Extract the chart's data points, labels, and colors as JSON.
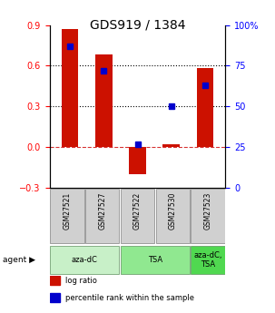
{
  "title": "GDS919 / 1384",
  "samples": [
    "GSM27521",
    "GSM27527",
    "GSM27522",
    "GSM27530",
    "GSM27523"
  ],
  "log_ratios": [
    0.87,
    0.68,
    -0.2,
    0.02,
    0.58
  ],
  "percentile_ranks": [
    87,
    72,
    27,
    50,
    63
  ],
  "left_ylim": [
    -0.3,
    0.9
  ],
  "right_ylim": [
    0,
    100
  ],
  "left_yticks": [
    -0.3,
    0.0,
    0.3,
    0.6,
    0.9
  ],
  "right_yticks": [
    0,
    25,
    50,
    75,
    100
  ],
  "right_yticklabels": [
    "0",
    "25",
    "50",
    "75",
    "100%"
  ],
  "hlines": [
    0.0,
    0.3,
    0.6
  ],
  "hline_styles": [
    "dashed",
    "dotted",
    "dotted"
  ],
  "hline_colors": [
    "#cc0000",
    "#000000",
    "#000000"
  ],
  "bar_color": "#cc1100",
  "dot_color": "#0000cc",
  "agent_groups": [
    {
      "label": "aza-dC",
      "indices": [
        0,
        1
      ],
      "color": "#c8f0c8"
    },
    {
      "label": "TSA",
      "indices": [
        2,
        3
      ],
      "color": "#90e890"
    },
    {
      "label": "aza-dC,\nTSA",
      "indices": [
        4
      ],
      "color": "#50d850"
    }
  ],
  "xlabel_label": "agent",
  "bar_width": 0.5,
  "sample_box_color": "#d0d0d0",
  "sample_box_edge": "#808080",
  "legend_items": [
    {
      "color": "#cc1100",
      "label": "log ratio"
    },
    {
      "color": "#0000cc",
      "label": "percentile rank within the sample"
    }
  ]
}
